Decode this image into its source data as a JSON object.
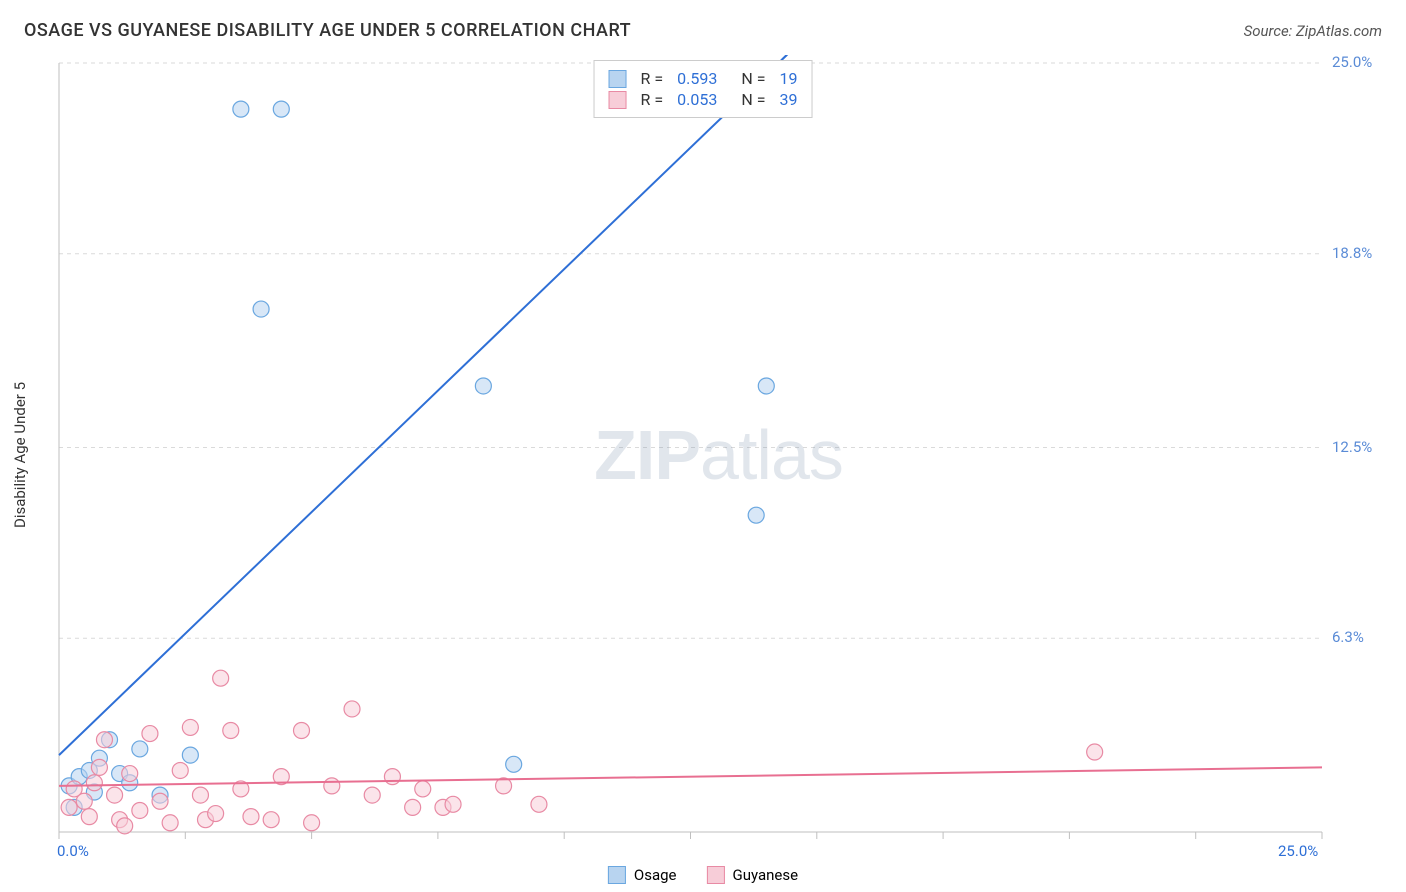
{
  "header": {
    "title": "OSAGE VS GUYANESE DISABILITY AGE UNDER 5 CORRELATION CHART",
    "source_prefix": "Source: ",
    "source_name": "ZipAtlas.com"
  },
  "ylabel": "Disability Age Under 5",
  "watermark": {
    "bold": "ZIP",
    "rest": "atlas"
  },
  "chart": {
    "type": "scatter-with-regression",
    "xlim": [
      0.0,
      25.0
    ],
    "ylim": [
      0.0,
      25.0
    ],
    "x_axis_min_label": "0.0%",
    "x_axis_max_label": "25.0%",
    "y_ticks": [
      {
        "value": 6.3,
        "label": "6.3%"
      },
      {
        "value": 12.5,
        "label": "12.5%"
      },
      {
        "value": 18.8,
        "label": "18.8%"
      },
      {
        "value": 25.0,
        "label": "25.0%"
      }
    ],
    "x_minor_tick_step": 2.5,
    "background_color": "#ffffff",
    "grid_color": "#dadada",
    "grid_dash": "4 4",
    "axis_color": "#bfbfbf",
    "series": [
      {
        "name": "Osage",
        "color_fill": "#b8d4f0",
        "color_stroke": "#6aa7e0",
        "marker_radius": 8,
        "line_color": "#2e6fd6",
        "line_width": 2,
        "line_solid_to_x": 15.5,
        "line_y_at_x0": 2.5,
        "line_y_at_xmax": 42.0,
        "points": [
          [
            0.2,
            1.5
          ],
          [
            0.4,
            1.8
          ],
          [
            0.6,
            2.0
          ],
          [
            0.7,
            1.3
          ],
          [
            0.8,
            2.4
          ],
          [
            1.0,
            3.0
          ],
          [
            1.2,
            1.9
          ],
          [
            1.4,
            1.6
          ],
          [
            1.6,
            2.7
          ],
          [
            2.0,
            1.2
          ],
          [
            2.6,
            2.5
          ],
          [
            3.6,
            23.5
          ],
          [
            4.4,
            23.5
          ],
          [
            4.0,
            17.0
          ],
          [
            8.4,
            14.5
          ],
          [
            9.0,
            2.2
          ],
          [
            14.0,
            14.5
          ],
          [
            13.8,
            10.3
          ],
          [
            0.3,
            0.8
          ]
        ],
        "R": "0.593",
        "N": "19"
      },
      {
        "name": "Guyanese",
        "color_fill": "#f7cdd8",
        "color_stroke": "#e88aa4",
        "marker_radius": 8,
        "line_color": "#e86f91",
        "line_width": 2,
        "line_solid_to_x": 25.0,
        "line_y_at_x0": 1.5,
        "line_y_at_xmax": 2.1,
        "points": [
          [
            0.2,
            0.8
          ],
          [
            0.3,
            1.4
          ],
          [
            0.5,
            1.0
          ],
          [
            0.6,
            0.5
          ],
          [
            0.7,
            1.6
          ],
          [
            0.8,
            2.1
          ],
          [
            0.9,
            3.0
          ],
          [
            1.1,
            1.2
          ],
          [
            1.2,
            0.4
          ],
          [
            1.4,
            1.9
          ],
          [
            1.6,
            0.7
          ],
          [
            1.8,
            3.2
          ],
          [
            2.0,
            1.0
          ],
          [
            2.2,
            0.3
          ],
          [
            2.4,
            2.0
          ],
          [
            2.6,
            3.4
          ],
          [
            2.8,
            1.2
          ],
          [
            3.2,
            5.0
          ],
          [
            3.4,
            3.3
          ],
          [
            3.6,
            1.4
          ],
          [
            3.8,
            0.5
          ],
          [
            4.2,
            0.4
          ],
          [
            4.4,
            1.8
          ],
          [
            4.8,
            3.3
          ],
          [
            5.0,
            0.3
          ],
          [
            5.4,
            1.5
          ],
          [
            5.8,
            4.0
          ],
          [
            6.2,
            1.2
          ],
          [
            6.6,
            1.8
          ],
          [
            7.0,
            0.8
          ],
          [
            7.2,
            1.4
          ],
          [
            7.6,
            0.8
          ],
          [
            7.8,
            0.9
          ],
          [
            8.8,
            1.5
          ],
          [
            9.5,
            0.9
          ],
          [
            1.3,
            0.2
          ],
          [
            2.9,
            0.4
          ],
          [
            3.1,
            0.6
          ],
          [
            20.5,
            2.6
          ]
        ],
        "R": "0.053",
        "N": "39"
      }
    ]
  },
  "legend_top": {
    "r_label": "R",
    "n_label": "N",
    "eq": "=",
    "value_color": "#2e6fd6"
  },
  "legend_bottom": {
    "items": [
      {
        "label": "Osage",
        "fill": "#b8d4f0",
        "stroke": "#6aa7e0"
      },
      {
        "label": "Guyanese",
        "fill": "#f7cdd8",
        "stroke": "#e88aa4"
      }
    ]
  },
  "colors": {
    "x_axis_label": "#2e6fd6",
    "y_tick_label": "#5a8bd6"
  }
}
